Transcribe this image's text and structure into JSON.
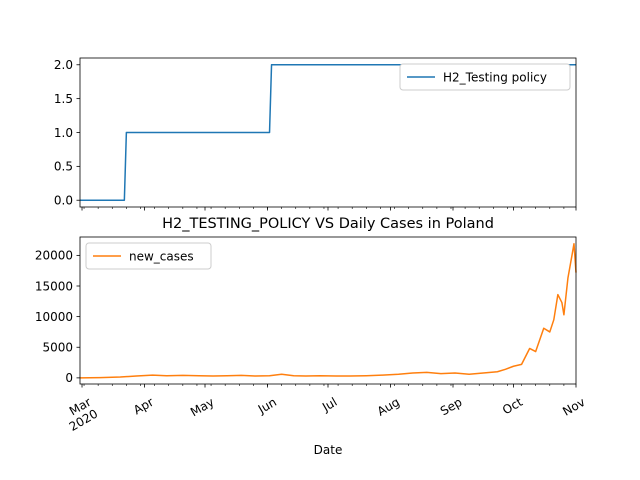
{
  "chart_data": [
    {
      "type": "line",
      "title": "",
      "xlabel": "",
      "ylabel": "",
      "ylim": [
        -0.1,
        2.1
      ],
      "yticks": [
        "0.0",
        "0.5",
        "1.0",
        "1.5",
        "2.0"
      ],
      "ytick_values": [
        0,
        0.5,
        1.0,
        1.5,
        2.0
      ],
      "legend_position": "upper right",
      "series": [
        {
          "name": "H2_Testing policy",
          "color": "#1f77b4",
          "x": [
            "2020-02-29",
            "2020-03-22",
            "2020-03-23",
            "2020-06-02",
            "2020-06-03",
            "2020-11-01"
          ],
          "values": [
            0,
            0,
            1,
            1,
            2,
            2
          ]
        }
      ]
    },
    {
      "type": "line",
      "title": "H2_TESTING_POLICY VS Daily Cases in Poland",
      "xlabel": "Date",
      "ylabel": "",
      "ylim": [
        -1000,
        23000
      ],
      "yticks": [
        "0",
        "5000",
        "10000",
        "15000",
        "20000"
      ],
      "ytick_values": [
        0,
        5000,
        10000,
        15000,
        20000
      ],
      "xticks": [
        "Mar\n2020",
        "Apr",
        "May",
        "Jun",
        "Jul",
        "Aug",
        "Sep",
        "Oct",
        "Nov"
      ],
      "legend_position": "upper left",
      "series": [
        {
          "name": "new_cases",
          "color": "#ff7f0e",
          "x": [
            "2020-02-29",
            "2020-03-10",
            "2020-03-20",
            "2020-03-28",
            "2020-04-05",
            "2020-04-12",
            "2020-04-20",
            "2020-04-28",
            "2020-05-05",
            "2020-05-12",
            "2020-05-19",
            "2020-05-26",
            "2020-06-02",
            "2020-06-08",
            "2020-06-14",
            "2020-06-20",
            "2020-06-27",
            "2020-07-05",
            "2020-07-12",
            "2020-07-20",
            "2020-07-28",
            "2020-08-05",
            "2020-08-12",
            "2020-08-19",
            "2020-08-26",
            "2020-09-02",
            "2020-09-09",
            "2020-09-16",
            "2020-09-23",
            "2020-09-27",
            "2020-10-01",
            "2020-10-05",
            "2020-10-09",
            "2020-10-12",
            "2020-10-14",
            "2020-10-16",
            "2020-10-19",
            "2020-10-21",
            "2020-10-23",
            "2020-10-25",
            "2020-10-26",
            "2020-10-28",
            "2020-10-30",
            "2020-10-31",
            "2020-11-01"
          ],
          "values": [
            0,
            50,
            150,
            300,
            450,
            350,
            400,
            350,
            300,
            350,
            400,
            300,
            350,
            600,
            350,
            300,
            350,
            300,
            300,
            350,
            450,
            600,
            800,
            900,
            700,
            800,
            600,
            800,
            1000,
            1400,
            1900,
            2200,
            4800,
            4300,
            6200,
            8100,
            7500,
            9500,
            13600,
            12300,
            10300,
            16300,
            20000,
            21900,
            17200
          ]
        }
      ]
    }
  ]
}
